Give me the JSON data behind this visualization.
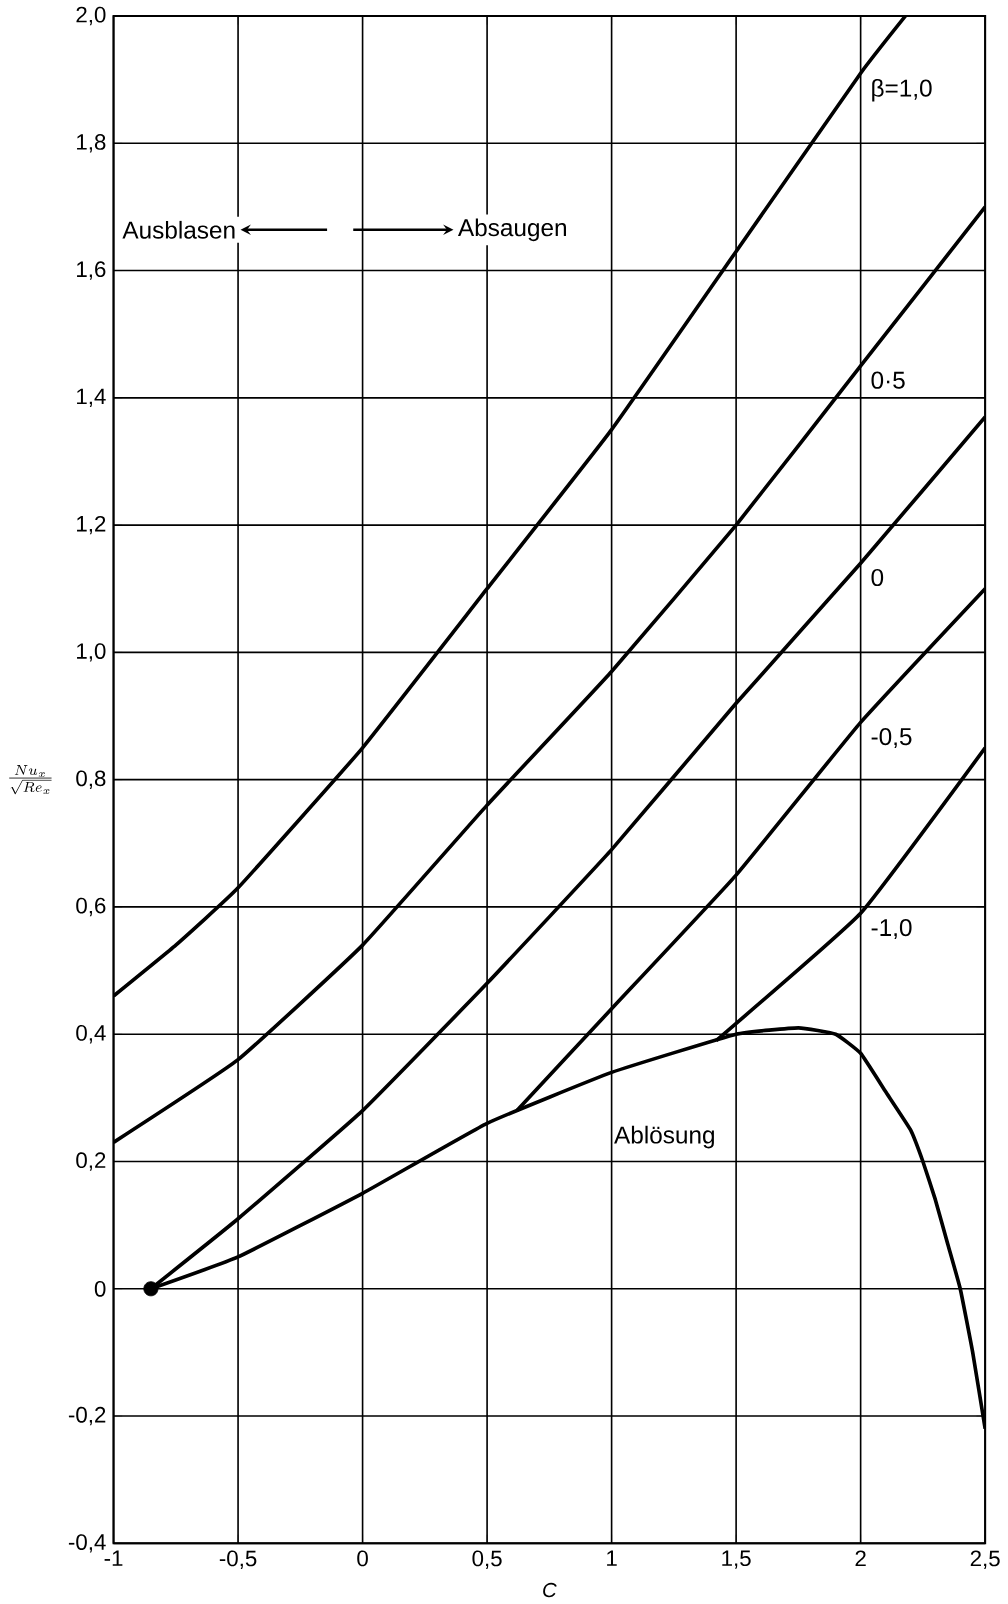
{
  "chart_data": {
    "type": "line",
    "xlabel": "C",
    "ylabel": "\\frac{Nu_x}{\\sqrt{Re_x}}",
    "annotations": [
      "Ausblasen",
      "Absaugen"
    ],
    "xlim": [
      -1,
      2.5
    ],
    "ylim": [
      -0.4,
      2.0
    ],
    "xticks": [
      -1,
      {
        "value": -0.5,
        "label": "-0,5"
      },
      0,
      {
        "value": 0.5,
        "label": "0,5"
      },
      1,
      {
        "value": 1.5,
        "label": "1,5"
      },
      2,
      {
        "value": 2.5,
        "label": "2,5"
      }
    ],
    "yticks": [
      {
        "value": -0.4,
        "label": "-0,4"
      },
      {
        "value": -0.2,
        "label": "-0,2"
      },
      0,
      {
        "value": 0.2,
        "label": "0,2"
      },
      {
        "value": 0.4,
        "label": "0,4"
      },
      {
        "value": 0.6,
        "label": "0,6"
      },
      {
        "value": 0.8,
        "label": "0,8"
      },
      {
        "value": 1.0,
        "label": "1,0"
      },
      {
        "value": 1.2,
        "label": "1,2"
      },
      {
        "value": 1.4,
        "label": "1,4"
      },
      {
        "value": 1.6,
        "label": "1,6"
      },
      {
        "value": 1.8,
        "label": "1,8"
      },
      {
        "value": 2.0,
        "label": "2,0"
      }
    ],
    "grid": true,
    "marker": "none",
    "line_style": "solid",
    "series": [
      {
        "name": "β=1,0",
        "color": "#000000",
        "x": [
          -1,
          -0.75,
          -0.5,
          0,
          0.5,
          1,
          1.5,
          2,
          2.18
        ],
        "values": [
          0.46,
          0.54,
          0.63,
          0.85,
          1.1,
          1.35,
          1.63,
          1.91,
          2.0
        ]
      },
      {
        "name": "0·5",
        "color": "#000000",
        "x": [
          -1,
          -0.5,
          0,
          0.5,
          1,
          1.5,
          2,
          2.5
        ],
        "values": [
          0.23,
          0.36,
          0.54,
          0.76,
          0.97,
          1.2,
          1.45,
          1.7
        ]
      },
      {
        "name": "0",
        "color": "#000000",
        "x": [
          -0.85,
          -0.5,
          0,
          0.5,
          1,
          1.5,
          2,
          2.5
        ],
        "values": [
          0,
          0.11,
          0.28,
          0.48,
          0.69,
          0.92,
          1.14,
          1.37
        ]
      },
      {
        "name": "-0,5",
        "color": "#000000",
        "x": [
          0.62,
          1,
          1.5,
          2,
          2.5
        ],
        "values": [
          0.28,
          0.44,
          0.65,
          0.89,
          1.1
        ]
      },
      {
        "name": "-1,0",
        "color": "#000000",
        "x": [
          1.42,
          2,
          2.5
        ],
        "values": [
          0.39,
          0.59,
          0.85
        ]
      },
      {
        "name": "Ablösung",
        "color": "#000000",
        "x": [
          -0.85,
          -0.5,
          0,
          0.5,
          1,
          1.5,
          1.75,
          1.9,
          2,
          2.1,
          2.2,
          2.25,
          2.3,
          2.35,
          2.4,
          2.45,
          2.5
        ],
        "values": [
          0,
          0.05,
          0.15,
          0.26,
          0.34,
          0.4,
          0.41,
          0.4,
          0.37,
          0.31,
          0.25,
          0.2,
          0.14,
          0.07,
          0,
          -0.1,
          -0.22
        ]
      },
      {
        "type": "scatter",
        "marker": "circle",
        "color": "#000000",
        "x": [
          -0.85
        ],
        "values": [
          0
        ]
      }
    ]
  }
}
